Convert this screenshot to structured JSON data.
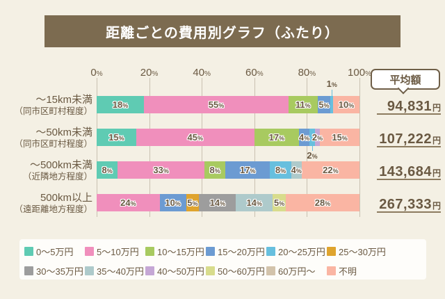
{
  "title": "距離ごとの費用別グラフ（ふたり）",
  "average_header": "平均額",
  "axis": {
    "ticks": [
      "0",
      "20",
      "40",
      "60",
      "80",
      "100"
    ],
    "unit": "%"
  },
  "chart_data": {
    "type": "stacked-bar-horizontal",
    "unit": "%",
    "xlim": [
      0,
      100
    ],
    "grid": true,
    "legend_position": "bottom",
    "categories": [
      {
        "label": "0～5万円",
        "color": "#5FCBB3"
      },
      {
        "label": "5～10万円",
        "color": "#F08FBC"
      },
      {
        "label": "10～15万円",
        "color": "#A8CA60"
      },
      {
        "label": "15～20万円",
        "color": "#6C9BD2"
      },
      {
        "label": "20～25万円",
        "color": "#67BFDE"
      },
      {
        "label": "25～30万円",
        "color": "#DFA42E"
      },
      {
        "label": "30～35万円",
        "color": "#9D9D9D"
      },
      {
        "label": "35～40万円",
        "color": "#AECACB"
      },
      {
        "label": "40～50万円",
        "color": "#C5A7D5"
      },
      {
        "label": "50～60万円",
        "color": "#D8DC8C"
      },
      {
        "label": "60万円～",
        "color": "#D3C3AB"
      },
      {
        "label": "不明",
        "color": "#FAB5A3"
      }
    ],
    "average_unit": "円",
    "rows": [
      {
        "label": "～15km未満",
        "sublabel": "（同市区町村程度）",
        "average": "94,831",
        "segments": [
          {
            "category": "0～5万円",
            "value": 18
          },
          {
            "category": "5～10万円",
            "value": 55
          },
          {
            "category": "10～15万円",
            "value": 11
          },
          {
            "category": "15～20万円",
            "value": 5
          },
          {
            "category": "20～25万円",
            "value": 1,
            "label_position": "above"
          },
          {
            "category": "不明",
            "value": 10
          }
        ]
      },
      {
        "label": "～50km未満",
        "sublabel": "（同市区町村程度）",
        "average": "107,222",
        "segments": [
          {
            "category": "0～5万円",
            "value": 15
          },
          {
            "category": "5～10万円",
            "value": 45
          },
          {
            "category": "10～15万円",
            "value": 17
          },
          {
            "category": "15～20万円",
            "value": 4
          },
          {
            "category": "20～25万円",
            "value": 2,
            "label_position": "below"
          },
          {
            "category": "40～50万円",
            "value": 2
          },
          {
            "category": "不明",
            "value": 15
          }
        ]
      },
      {
        "label": "～500km未満",
        "sublabel": "（近隣地方程度）",
        "average": "143,684",
        "segments": [
          {
            "category": "0～5万円",
            "value": 8
          },
          {
            "category": "5～10万円",
            "value": 33
          },
          {
            "category": "10～15万円",
            "value": 8
          },
          {
            "category": "15～20万円",
            "value": 17
          },
          {
            "category": "20～25万円",
            "value": 8
          },
          {
            "category": "35～40万円",
            "value": 4
          },
          {
            "category": "不明",
            "value": 22
          }
        ]
      },
      {
        "label": "500km以上",
        "sublabel": "（遠距離地方程度）",
        "average": "267,333",
        "segments": [
          {
            "category": "5～10万円",
            "value": 24
          },
          {
            "category": "15～20万円",
            "value": 10
          },
          {
            "category": "25～30万円",
            "value": 5
          },
          {
            "category": "30～35万円",
            "value": 14
          },
          {
            "category": "35～40万円",
            "value": 14
          },
          {
            "category": "50～60万円",
            "value": 5
          },
          {
            "category": "不明",
            "value": 28
          }
        ]
      }
    ]
  }
}
